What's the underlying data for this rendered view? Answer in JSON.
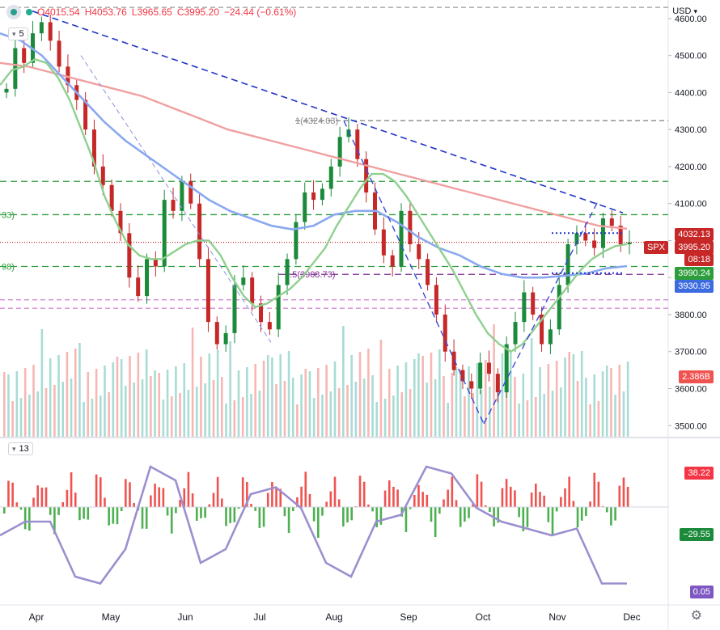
{
  "header": {
    "open": "O4015.54",
    "high": "H4053.76",
    "low": "L3965.65",
    "close": "C3995.20",
    "change": "−24.44 (−0.61%)",
    "pane_label": "5"
  },
  "currency": "USD",
  "lower_pane_label": "13",
  "price_tags": {
    "top": "4032.13",
    "symbol": "SPX",
    "last": "3995.20",
    "countdown": "08:18",
    "green": "3990.24",
    "blue": "3930.95",
    "volume": "2.386B",
    "osc_pos": "38.22",
    "osc_neg": "−29.55",
    "osc_line": "0.05"
  },
  "annotations": {
    "fib_top": "1(4324.03)",
    "fib_mid": "0.5(3908.73)",
    "left_33": "33)",
    "left_98": "98)"
  },
  "colors": {
    "up": "#26a69a",
    "down": "#ef5350",
    "candle_up": "#1b8a3a",
    "candle_down": "#c62828",
    "ma_fast": "#8fd08f",
    "ma_mid": "#8aa8f0",
    "ma_slow": "#f0a0a0",
    "trend": "#2034c8",
    "osc": "#9c8fd0"
  },
  "chart_data": {
    "type": "candlestick",
    "title": "SPX",
    "y_axis": {
      "ticks": [
        3500,
        3600,
        3700,
        3800,
        3900,
        4000,
        4100,
        4200,
        4300,
        4400,
        4500,
        4600
      ],
      "ylim": [
        3470,
        4650
      ]
    },
    "x_axis": {
      "ticks": [
        "Apr",
        "May",
        "Jun",
        "Jul",
        "Aug",
        "Sep",
        "Oct",
        "Nov",
        "Dec"
      ]
    },
    "closes": [
      4410,
      4520,
      4480,
      4560,
      4590,
      4540,
      4470,
      4420,
      4380,
      4300,
      4200,
      4150,
      4080,
      4020,
      3900,
      3850,
      3950,
      3930,
      4110,
      4080,
      4160,
      4100,
      3950,
      3780,
      3720,
      3750,
      3880,
      3900,
      3830,
      3780,
      3760,
      3880,
      3950,
      4050,
      4130,
      4110,
      4140,
      4200,
      4280,
      4300,
      4220,
      4130,
      4030,
      3960,
      3930,
      4080,
      3990,
      3950,
      3880,
      3800,
      3700,
      3650,
      3620,
      3600,
      3670,
      3640,
      3590,
      3720,
      3780,
      3860,
      3800,
      3720,
      3760,
      3880,
      3990,
      4020,
      4000,
      3980,
      4060,
      4040,
      3990,
      3995
    ],
    "ma_fast": [
      4420,
      4460,
      4470,
      4490,
      4480,
      4440,
      4380,
      4300,
      4220,
      4120,
      4050,
      3990,
      3960,
      3950,
      3950,
      3970,
      3990,
      4000,
      4000,
      3960,
      3900,
      3850,
      3820,
      3830,
      3850,
      3870,
      3900,
      3940,
      3980,
      4040,
      4090,
      4140,
      4180,
      4180,
      4160,
      4120,
      4070,
      4020,
      3970,
      3920,
      3860,
      3800,
      3750,
      3720,
      3700,
      3720,
      3760,
      3800,
      3840,
      3880,
      3920,
      3950,
      3970,
      3985,
      3990
    ],
    "ma_mid": [
      4560,
      4540,
      4500,
      4440,
      4380,
      4320,
      4270,
      4230,
      4190,
      4150,
      4110,
      4080,
      4060,
      4040,
      4030,
      4040,
      4070,
      4080,
      4080,
      4050,
      4010,
      3980,
      3960,
      3930,
      3910,
      3900,
      3900,
      3905,
      3910,
      3925,
      3931
    ],
    "ma_slow": [
      4480,
      4470,
      4450,
      4430,
      4410,
      4390,
      4360,
      4330,
      4300,
      4280,
      4260,
      4240,
      4220,
      4200,
      4180,
      4160,
      4140,
      4120,
      4100,
      4080,
      4060,
      4040,
      4032
    ],
    "oscillator": [
      0.4,
      0.5,
      0.5,
      0.1,
      0.05,
      0.3,
      0.9,
      0.8,
      0.2,
      0.3,
      0.7,
      0.75,
      0.6,
      0.2,
      0.1,
      0.5,
      0.55,
      0.9,
      0.85,
      0.6,
      0.5,
      0.45,
      0.4,
      0.45,
      0.05,
      0.05
    ],
    "levels": {
      "resistance": 4160,
      "mid": 4070,
      "support": 3930,
      "fib_1": 4324.03,
      "fib_05": 3908.73,
      "recent_top": 3840,
      "recent_low": 3817
    }
  }
}
